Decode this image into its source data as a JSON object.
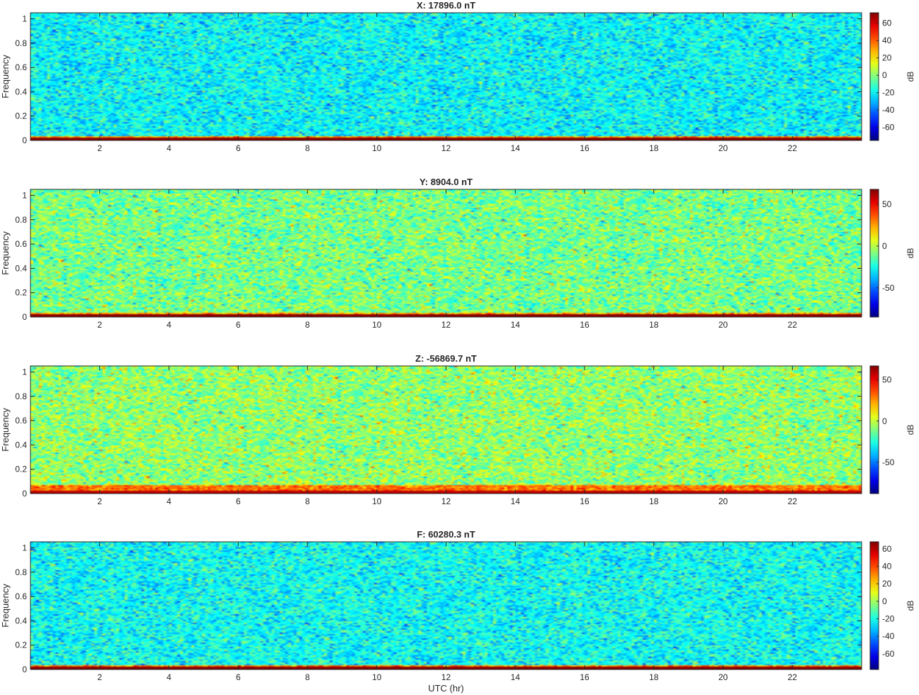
{
  "chart_data": [
    {
      "type": "heatmap",
      "title": "X: 17896.0 nT",
      "ylabel": "Frequency",
      "xlim": [
        0,
        24
      ],
      "ylim": [
        0,
        1.05
      ],
      "xticks": [
        2,
        4,
        6,
        8,
        10,
        12,
        14,
        16,
        18,
        20,
        22
      ],
      "yticks": [
        0,
        0.2,
        0.4,
        0.6,
        0.8,
        1
      ],
      "colorbar": {
        "label": "dB",
        "range": [
          -75,
          72
        ],
        "ticks": [
          -60,
          -40,
          -20,
          0,
          20,
          40,
          60
        ]
      },
      "intensity": {
        "background_db": -20,
        "noise_db": 10,
        "low_band_db": 30,
        "dc_db": 72,
        "low_band_top_frequency": 0.04
      }
    },
    {
      "type": "heatmap",
      "title": "Y: 8904.0 nT",
      "ylabel": "Frequency",
      "xlim": [
        0,
        24
      ],
      "ylim": [
        0,
        1.05
      ],
      "xticks": [
        2,
        4,
        6,
        8,
        10,
        12,
        14,
        16,
        18,
        20,
        22
      ],
      "yticks": [
        0,
        0.2,
        0.4,
        0.6,
        0.8,
        1
      ],
      "colorbar": {
        "label": "dB",
        "range": [
          -85,
          68
        ],
        "ticks": [
          -50,
          0,
          50
        ]
      },
      "intensity": {
        "background_db": -10,
        "noise_db": 12,
        "low_band_db": 25,
        "dc_db": 68,
        "low_band_top_frequency": 0.04
      }
    },
    {
      "type": "heatmap",
      "title": "Z: -56869.7 nT",
      "ylabel": "Frequency",
      "xlim": [
        0,
        24
      ],
      "ylim": [
        0,
        1.05
      ],
      "xticks": [
        2,
        4,
        6,
        8,
        10,
        12,
        14,
        16,
        18,
        20,
        22
      ],
      "yticks": [
        0,
        0.2,
        0.4,
        0.6,
        0.8,
        1
      ],
      "colorbar": {
        "label": "dB",
        "range": [
          -88,
          67
        ],
        "ticks": [
          -50,
          0,
          50
        ]
      },
      "intensity": {
        "background_db": -8,
        "noise_db": 12,
        "low_band_db": 30,
        "dc_db": 60,
        "low_band_top_frequency": 0.07
      }
    },
    {
      "type": "heatmap",
      "title": "F: 60280.3 nT",
      "ylabel": "Frequency",
      "xlabel": "UTC (hr)",
      "xlim": [
        0,
        24
      ],
      "ylim": [
        0,
        1.05
      ],
      "xticks": [
        2,
        4,
        6,
        8,
        10,
        12,
        14,
        16,
        18,
        20,
        22
      ],
      "yticks": [
        0,
        0.2,
        0.4,
        0.6,
        0.8,
        1
      ],
      "colorbar": {
        "label": "dB",
        "range": [
          -78,
          68
        ],
        "ticks": [
          -60,
          -40,
          -20,
          0,
          20,
          40,
          60
        ]
      },
      "intensity": {
        "background_db": -22,
        "noise_db": 10,
        "low_band_db": 30,
        "dc_db": 68,
        "low_band_top_frequency": 0.04
      }
    }
  ]
}
